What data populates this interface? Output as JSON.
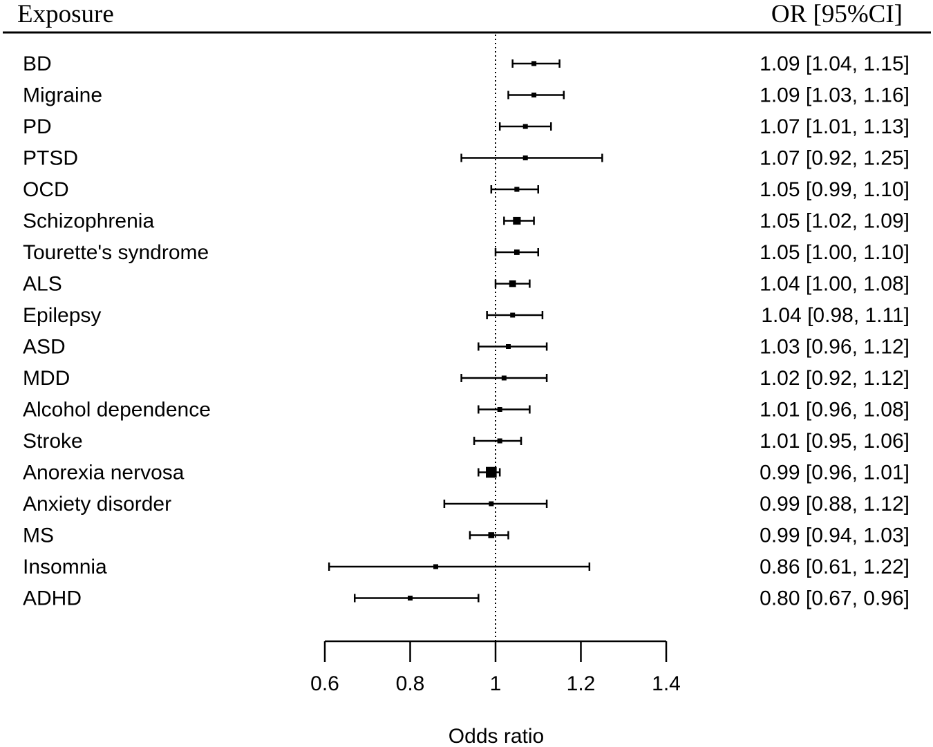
{
  "chart_data": {
    "type": "forest",
    "header_left": "Exposure",
    "header_right": "OR [95%CI]",
    "xlabel": "Odds ratio",
    "xlim": [
      0.6,
      1.4
    ],
    "ticks": [
      0.6,
      0.8,
      1,
      1.2,
      1.4
    ],
    "tick_labels": [
      "0.6",
      "0.8",
      "1",
      "1.2",
      "1.4"
    ],
    "reference_line": 1,
    "rows": [
      {
        "label": "BD",
        "or": 1.09,
        "lo": 1.04,
        "hi": 1.15,
        "text": "1.09 [1.04, 1.15]"
      },
      {
        "label": "Migraine",
        "or": 1.09,
        "lo": 1.03,
        "hi": 1.16,
        "text": "1.09 [1.03, 1.16]"
      },
      {
        "label": "PD",
        "or": 1.07,
        "lo": 1.01,
        "hi": 1.13,
        "text": "1.07 [1.01, 1.13]"
      },
      {
        "label": "PTSD",
        "or": 1.07,
        "lo": 0.92,
        "hi": 1.25,
        "text": "1.07 [0.92, 1.25]"
      },
      {
        "label": "OCD",
        "or": 1.05,
        "lo": 0.99,
        "hi": 1.1,
        "text": "1.05 [0.99, 1.10]"
      },
      {
        "label": "Schizophrenia",
        "or": 1.05,
        "lo": 1.02,
        "hi": 1.09,
        "text": "1.05 [1.02, 1.09]"
      },
      {
        "label": "Tourette's syndrome",
        "or": 1.05,
        "lo": 1.0,
        "hi": 1.1,
        "text": "1.05 [1.00, 1.10]"
      },
      {
        "label": "ALS",
        "or": 1.04,
        "lo": 1.0,
        "hi": 1.08,
        "text": "1.04 [1.00, 1.08]"
      },
      {
        "label": "Epilepsy",
        "or": 1.04,
        "lo": 0.98,
        "hi": 1.11,
        "text": "1.04 [0.98, 1.11]"
      },
      {
        "label": "ASD",
        "or": 1.03,
        "lo": 0.96,
        "hi": 1.12,
        "text": "1.03 [0.96, 1.12]"
      },
      {
        "label": "MDD",
        "or": 1.02,
        "lo": 0.92,
        "hi": 1.12,
        "text": "1.02 [0.92, 1.12]"
      },
      {
        "label": "Alcohol dependence",
        "or": 1.01,
        "lo": 0.96,
        "hi": 1.08,
        "text": "1.01 [0.96, 1.08]"
      },
      {
        "label": "Stroke",
        "or": 1.01,
        "lo": 0.95,
        "hi": 1.06,
        "text": "1.01 [0.95, 1.06]"
      },
      {
        "label": "Anorexia nervosa",
        "or": 0.99,
        "lo": 0.96,
        "hi": 1.01,
        "text": "0.99 [0.96, 1.01]"
      },
      {
        "label": "Anxiety disorder",
        "or": 0.99,
        "lo": 0.88,
        "hi": 1.12,
        "text": "0.99 [0.88, 1.12]"
      },
      {
        "label": "MS",
        "or": 0.99,
        "lo": 0.94,
        "hi": 1.03,
        "text": "0.99 [0.94, 1.03]"
      },
      {
        "label": "Insomnia",
        "or": 0.86,
        "lo": 0.61,
        "hi": 1.22,
        "text": "0.86 [0.61, 1.22]"
      },
      {
        "label": "ADHD",
        "or": 0.8,
        "lo": 0.67,
        "hi": 0.96,
        "text": "0.80 [0.67, 0.96]"
      }
    ]
  }
}
